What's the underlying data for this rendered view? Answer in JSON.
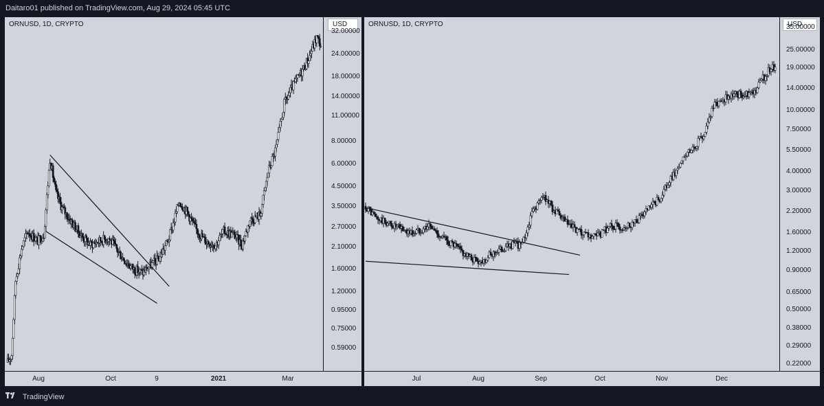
{
  "header": {
    "published_text": "Daitaro01 published on TradingView.com, Aug 29, 2024 05:45 UTC"
  },
  "footer": {
    "brand": "TradingView"
  },
  "colors": {
    "background": "#131722",
    "plot": "#d1d4dc",
    "candle": "#131722",
    "text": "#131722"
  },
  "chart_data": [
    {
      "type": "candlestick",
      "symbol_label": "ORNUSD, 1D, CRYPTO",
      "unit": "USD",
      "scale": "log",
      "ylim": [
        0.48,
        36
      ],
      "y_ticks": [
        "32.00000",
        "24.00000",
        "18.00000",
        "14.00000",
        "11.00000",
        "8.00000",
        "6.00000",
        "4.50000",
        "3.50000",
        "2.70000",
        "2.10000",
        "1.60000",
        "1.20000",
        "0.95000",
        "0.75000",
        "0.59000"
      ],
      "x_ticks": [
        {
          "label": "Aug",
          "bold": false
        },
        {
          "label": "Oct",
          "bold": false
        },
        {
          "label": "9",
          "bold": false
        },
        {
          "label": "2021",
          "bold": true
        },
        {
          "label": "Mar",
          "bold": false
        }
      ],
      "trend": [
        {
          "day": 0,
          "price": 0.5
        },
        {
          "day": 4,
          "price": 0.55
        },
        {
          "day": 8,
          "price": 1.4
        },
        {
          "day": 14,
          "price": 2.1
        },
        {
          "day": 20,
          "price": 2.6
        },
        {
          "day": 30,
          "price": 2.3
        },
        {
          "day": 36,
          "price": 2.5
        },
        {
          "day": 42,
          "price": 6.5
        },
        {
          "day": 48,
          "price": 4.2
        },
        {
          "day": 54,
          "price": 3.5
        },
        {
          "day": 62,
          "price": 3.0
        },
        {
          "day": 72,
          "price": 2.5
        },
        {
          "day": 82,
          "price": 2.2
        },
        {
          "day": 90,
          "price": 2.3
        },
        {
          "day": 100,
          "price": 2.4
        },
        {
          "day": 110,
          "price": 2.0
        },
        {
          "day": 118,
          "price": 1.75
        },
        {
          "day": 126,
          "price": 1.6
        },
        {
          "day": 134,
          "price": 1.55
        },
        {
          "day": 142,
          "price": 1.7
        },
        {
          "day": 150,
          "price": 1.85
        },
        {
          "day": 160,
          "price": 2.4
        },
        {
          "day": 170,
          "price": 3.8
        },
        {
          "day": 178,
          "price": 3.3
        },
        {
          "day": 186,
          "price": 2.7
        },
        {
          "day": 196,
          "price": 2.3
        },
        {
          "day": 206,
          "price": 2.2
        },
        {
          "day": 214,
          "price": 2.6
        },
        {
          "day": 224,
          "price": 2.5
        },
        {
          "day": 232,
          "price": 2.2
        },
        {
          "day": 240,
          "price": 3.0
        },
        {
          "day": 250,
          "price": 3.2
        },
        {
          "day": 258,
          "price": 5.5
        },
        {
          "day": 266,
          "price": 7.5
        },
        {
          "day": 274,
          "price": 13
        },
        {
          "day": 282,
          "price": 16
        },
        {
          "day": 290,
          "price": 19
        },
        {
          "day": 298,
          "price": 23
        },
        {
          "day": 306,
          "price": 30
        },
        {
          "day": 312,
          "price": 26
        }
      ],
      "trendlines": [
        {
          "from": {
            "day": 42,
            "price": 6.8
          },
          "to": {
            "day": 160,
            "price": 1.3
          }
        },
        {
          "from": {
            "day": 38,
            "price": 2.6
          },
          "to": {
            "day": 148,
            "price": 1.05
          }
        }
      ]
    },
    {
      "type": "candlestick",
      "symbol_label": "ORNUSD, 1D, CRYPTO",
      "unit": "USD",
      "scale": "log",
      "ylim": [
        0.21,
        38
      ],
      "y_ticks": [
        "35.00000",
        "25.00000",
        "19.00000",
        "14.00000",
        "10.00000",
        "7.50000",
        "5.50000",
        "4.00000",
        "3.00000",
        "2.20000",
        "1.60000",
        "1.20000",
        "0.90000",
        "0.65000",
        "0.50000",
        "0.38000",
        "0.29000",
        "0.22000"
      ],
      "x_ticks": [
        {
          "label": "Jul",
          "bold": false
        },
        {
          "label": "Aug",
          "bold": false
        },
        {
          "label": "Sep",
          "bold": false
        },
        {
          "label": "Oct",
          "bold": false
        },
        {
          "label": "Nov",
          "bold": false
        },
        {
          "label": "Dec",
          "bold": false
        }
      ],
      "trend": [
        {
          "day": 0,
          "price": 2.4
        },
        {
          "day": 8,
          "price": 2.0
        },
        {
          "day": 20,
          "price": 1.8
        },
        {
          "day": 34,
          "price": 1.6
        },
        {
          "day": 46,
          "price": 1.8
        },
        {
          "day": 56,
          "price": 1.5
        },
        {
          "day": 66,
          "price": 1.3
        },
        {
          "day": 76,
          "price": 1.1
        },
        {
          "day": 84,
          "price": 1.05
        },
        {
          "day": 94,
          "price": 1.2
        },
        {
          "day": 106,
          "price": 1.35
        },
        {
          "day": 114,
          "price": 1.35
        },
        {
          "day": 122,
          "price": 2.3
        },
        {
          "day": 130,
          "price": 2.8
        },
        {
          "day": 138,
          "price": 2.2
        },
        {
          "day": 148,
          "price": 1.8
        },
        {
          "day": 158,
          "price": 1.55
        },
        {
          "day": 168,
          "price": 1.5
        },
        {
          "day": 178,
          "price": 1.8
        },
        {
          "day": 186,
          "price": 1.75
        },
        {
          "day": 196,
          "price": 1.9
        },
        {
          "day": 206,
          "price": 2.3
        },
        {
          "day": 214,
          "price": 2.7
        },
        {
          "day": 222,
          "price": 3.6
        },
        {
          "day": 232,
          "price": 5.0
        },
        {
          "day": 240,
          "price": 6.0
        },
        {
          "day": 246,
          "price": 7.0
        },
        {
          "day": 252,
          "price": 10.5
        },
        {
          "day": 260,
          "price": 12
        },
        {
          "day": 268,
          "price": 13
        },
        {
          "day": 276,
          "price": 13
        },
        {
          "day": 284,
          "price": 14
        },
        {
          "day": 292,
          "price": 18
        },
        {
          "day": 298,
          "price": 20
        }
      ],
      "trendlines": [
        {
          "from": {
            "day": 0,
            "price": 2.35
          },
          "to": {
            "day": 156,
            "price": 1.15
          }
        },
        {
          "from": {
            "day": 0,
            "price": 1.05
          },
          "to": {
            "day": 148,
            "price": 0.86
          }
        }
      ]
    }
  ]
}
